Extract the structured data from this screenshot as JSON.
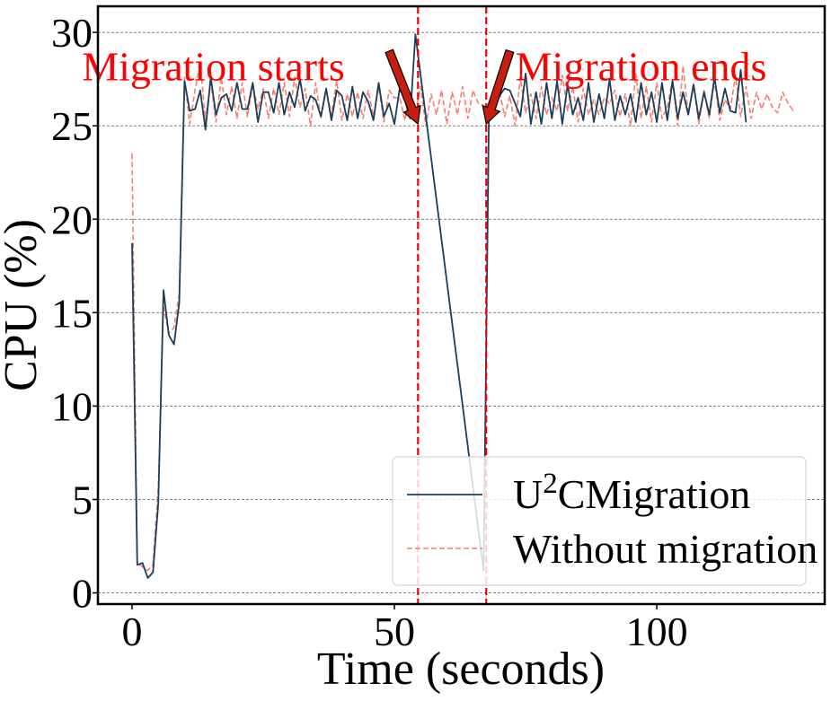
{
  "chart_data": {
    "type": "line",
    "title": "",
    "xlabel": "Time (seconds)",
    "ylabel": "CPU (%)",
    "xlim": [
      -6.5,
      132
    ],
    "ylim": [
      -0.6,
      31.4
    ],
    "xticks": [
      0,
      50,
      100
    ],
    "xtick_labels": [
      "0",
      "50",
      "100"
    ],
    "yticks": [
      0,
      5,
      10,
      15,
      20,
      25,
      30
    ],
    "ytick_labels": [
      "0",
      "5",
      "10",
      "15",
      "20",
      "25",
      "30"
    ],
    "grid": "horizontal dashed",
    "legend_position": "lower-right",
    "colors": {
      "u2c": "#1b3e5a",
      "without": "#f47f70",
      "vline": "#e8000b",
      "annotation": "#ff0000",
      "arrow_fill": "#c81e10"
    },
    "series": [
      {
        "name": "U2CMigration",
        "legend_base": "U",
        "legend_sup": "2",
        "legend_rest": "CMigration",
        "style": "solid",
        "x": [
          0,
          1,
          2,
          3,
          4,
          5,
          6,
          7,
          8,
          9,
          10,
          11,
          12,
          13,
          14,
          15,
          16,
          17,
          18,
          19,
          20,
          21,
          22,
          23,
          24,
          25,
          26,
          27,
          28,
          29,
          30,
          31,
          32,
          33,
          34,
          35,
          36,
          37,
          38,
          39,
          40,
          41,
          42,
          43,
          44,
          45,
          46,
          47,
          48,
          49,
          50,
          51,
          52,
          53,
          54,
          67,
          68,
          69,
          70,
          71,
          72,
          73,
          74,
          75,
          76,
          77,
          78,
          79,
          80,
          81,
          82,
          83,
          84,
          85,
          86,
          87,
          88,
          89,
          90,
          91,
          92,
          93,
          94,
          95,
          96,
          97,
          98,
          99,
          100,
          101,
          102,
          103,
          104,
          105,
          106,
          107,
          108,
          109,
          110,
          111,
          112,
          113,
          114,
          115,
          116,
          117
        ],
        "values": [
          18.7,
          1.5,
          1.6,
          0.8,
          1.1,
          4.8,
          16.2,
          13.8,
          13.3,
          15.5,
          27.4,
          25.8,
          25.9,
          26.9,
          24.8,
          27.6,
          25.6,
          26.5,
          26.7,
          25.8,
          27.3,
          25.9,
          25.9,
          27.3,
          25.2,
          26.8,
          26.8,
          25.7,
          27.3,
          25.6,
          26.8,
          26.0,
          27.5,
          25.8,
          26.6,
          26.4,
          25.5,
          27.0,
          25.3,
          26.9,
          26.6,
          25.3,
          27.1,
          25.4,
          26.8,
          26.3,
          25.3,
          27.3,
          25.5,
          26.2,
          25.1,
          27.0,
          26.4,
          25.4,
          29.9,
          1.2,
          25.6,
          26.2,
          26.6,
          27.0,
          26.9,
          26.2,
          25.5,
          27.8,
          25.1,
          26.8,
          25.1,
          27.3,
          25.4,
          27.4,
          25.1,
          27.2,
          25.6,
          26.5,
          25.3,
          27.3,
          25.2,
          26.7,
          25.4,
          27.5,
          25.3,
          26.6,
          25.6,
          26.7,
          25.2,
          27.3,
          25.6,
          26.8,
          25.2,
          27.3,
          25.3,
          27.4,
          25.4,
          26.8,
          25.6,
          27.2,
          25.4,
          26.8,
          25.6,
          27.6,
          25.7,
          27.0,
          25.8,
          25.7,
          28.0,
          25.2
        ]
      },
      {
        "name": "Without migration",
        "style": "dashed",
        "x": [
          0,
          1,
          2,
          3,
          4,
          5,
          6,
          7,
          8,
          9,
          10,
          11,
          12,
          13,
          14,
          15,
          16,
          17,
          18,
          19,
          20,
          21,
          22,
          23,
          24,
          25,
          26,
          27,
          28,
          29,
          30,
          31,
          32,
          33,
          34,
          35,
          36,
          37,
          38,
          39,
          40,
          41,
          42,
          43,
          44,
          45,
          46,
          47,
          48,
          49,
          50,
          51,
          52,
          53,
          54,
          55,
          56,
          57,
          58,
          59,
          60,
          61,
          62,
          63,
          64,
          65,
          66,
          67,
          68,
          69,
          70,
          71,
          72,
          73,
          74,
          75,
          76,
          77,
          78,
          79,
          80,
          81,
          82,
          83,
          84,
          85,
          86,
          87,
          88,
          89,
          90,
          91,
          92,
          93,
          94,
          95,
          96,
          97,
          98,
          99,
          100,
          101,
          102,
          103,
          104,
          105,
          106,
          107,
          108,
          109,
          110,
          111,
          112,
          113,
          114,
          115,
          116,
          117,
          118,
          119,
          120,
          121,
          122,
          123,
          124,
          125,
          126
        ],
        "values": [
          23.5,
          1.6,
          1.4,
          1.2,
          1.5,
          5.6,
          15.3,
          13.9,
          14.2,
          16.0,
          27.6,
          25.1,
          26.9,
          28.4,
          25.3,
          27.4,
          25.2,
          27.6,
          25.6,
          27.1,
          25.4,
          27.3,
          25.5,
          27.2,
          25.9,
          27.0,
          25.4,
          27.0,
          25.6,
          27.3,
          25.5,
          27.6,
          26.0,
          27.0,
          25.0,
          27.3,
          25.4,
          26.9,
          25.6,
          27.4,
          25.3,
          26.7,
          25.5,
          26.8,
          25.4,
          26.9,
          25.5,
          27.1,
          25.2,
          26.9,
          26.5,
          26.5,
          25.3,
          26.8,
          25.7,
          27.1,
          25.0,
          26.7,
          25.6,
          26.9,
          25.1,
          26.8,
          25.6,
          27.1,
          25.4,
          26.9,
          26.2,
          26.1,
          25.4,
          26.4,
          26.9,
          25.5,
          26.6,
          25.0,
          27.6,
          25.7,
          26.7,
          25.4,
          27.1,
          25.6,
          26.5,
          25.8,
          27.7,
          25.8,
          27.1,
          25.2,
          27.0,
          25.6,
          26.4,
          25.6,
          26.5,
          26.2,
          26.9,
          25.5,
          26.7,
          25.0,
          27.8,
          25.4,
          27.1,
          25.2,
          27.3,
          25.4,
          26.0,
          27.5,
          25.0,
          28.2,
          25.6,
          27.3,
          25.1,
          26.9,
          25.4,
          27.4,
          25.3,
          26.4,
          25.9,
          27.7,
          25.5,
          27.1,
          25.4,
          26.8,
          25.9,
          26.7,
          26.0,
          25.7,
          26.8,
          26.2,
          25.8
        ]
      }
    ],
    "vlines": [
      54.5,
      67.5
    ],
    "annotations": [
      {
        "text": "Migration starts",
        "text_x": 15.5,
        "text_y": 28.2,
        "arrow_from": [
          49,
          29
        ],
        "arrow_to": [
          54.5,
          25.1
        ]
      },
      {
        "text": "Migration ends",
        "text_x": 97,
        "text_y": 28.2,
        "arrow_from": [
          72,
          29
        ],
        "arrow_to": [
          67.5,
          25.1
        ]
      }
    ]
  }
}
